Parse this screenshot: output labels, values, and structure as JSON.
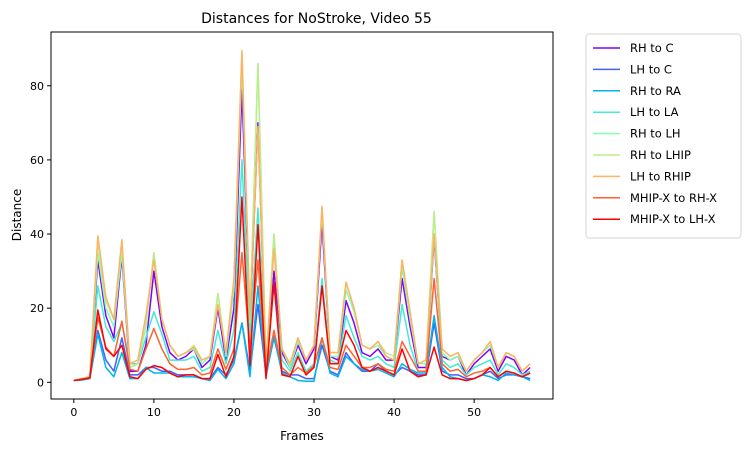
{
  "chart_data": {
    "type": "line",
    "title": "Distances for NoStroke, Video 55",
    "xlabel": "Frames",
    "ylabel": "Distance",
    "xlim": [
      -2.85,
      59.85
    ],
    "ylim": [
      -4.5,
      94.5
    ],
    "xticks": [
      0,
      10,
      20,
      30,
      40,
      50
    ],
    "yticks": [
      0,
      20,
      40,
      60,
      80
    ],
    "legend": "outside-right",
    "grid": false,
    "x_start": 0,
    "series": [
      {
        "name": "RH to C",
        "color": "#8000ff",
        "values": [
          0.5,
          0.8,
          1.2,
          33,
          18,
          12,
          34,
          3,
          3,
          10,
          30,
          15,
          8,
          6,
          7,
          9,
          4,
          6,
          20,
          6,
          20,
          79,
          16,
          70,
          4,
          30,
          8,
          4,
          10,
          5,
          9,
          43,
          7,
          6,
          22,
          16,
          8,
          7,
          9,
          6,
          6,
          28,
          15,
          4,
          4,
          39,
          7,
          6,
          7,
          2,
          5,
          7,
          9,
          3,
          7,
          6,
          2,
          4
        ]
      },
      {
        "name": "LH to C",
        "color": "#4062fa",
        "values": [
          0.5,
          0.8,
          1.0,
          14,
          6,
          3,
          12,
          2,
          2,
          4,
          4,
          3,
          3,
          2,
          2,
          2,
          1,
          1,
          4,
          2,
          6,
          16,
          3,
          21,
          2,
          12,
          3,
          2,
          2,
          1,
          1,
          10,
          3,
          2,
          8,
          5,
          3,
          3,
          5,
          3,
          2,
          4,
          3,
          2,
          2,
          16,
          3,
          2,
          2,
          1,
          1,
          2,
          3,
          1,
          2,
          2,
          1.5,
          1
        ]
      },
      {
        "name": "RH to RA",
        "color": "#00b5eb",
        "values": [
          0.5,
          0.6,
          1.0,
          13,
          4,
          1.5,
          8,
          1,
          1,
          4,
          2.5,
          2.5,
          2.5,
          1.5,
          1.5,
          1.5,
          1,
          0.5,
          3.5,
          1,
          5,
          16,
          1.5,
          26,
          1.5,
          12.5,
          2.5,
          1.5,
          0.5,
          0.3,
          0.3,
          12,
          2.5,
          1.5,
          7,
          5,
          3.5,
          3,
          3.5,
          2.5,
          1.5,
          5,
          3.5,
          2.5,
          2.5,
          18,
          4,
          1.5,
          1,
          0.5,
          1,
          2,
          1.5,
          0.5,
          2.5,
          2,
          1.5,
          0.5
        ]
      },
      {
        "name": "LH to LA",
        "color": "#40ecd4",
        "values": [
          0.5,
          0.8,
          1.2,
          26,
          15,
          11,
          16,
          5,
          5,
          12,
          19,
          13,
          6,
          6,
          6,
          7,
          3,
          4,
          14,
          5,
          14,
          60,
          12,
          47,
          4,
          26,
          6,
          3,
          8,
          3,
          5,
          28,
          6,
          5,
          18,
          12,
          7,
          6,
          7,
          5,
          4,
          21,
          10,
          3,
          3,
          40,
          6,
          4,
          5,
          2,
          4,
          5,
          6,
          2,
          5,
          4,
          2,
          3
        ]
      },
      {
        "name": "RH to LH",
        "color": "#80ffb4",
        "values": [
          0.5,
          1.0,
          1.5,
          35,
          20,
          15,
          35,
          4,
          5,
          15,
          35,
          17,
          10,
          7,
          8,
          9,
          5,
          7,
          24,
          7,
          25,
          86,
          16,
          86,
          5,
          40,
          9,
          4,
          11,
          6,
          10,
          46,
          7,
          7,
          25,
          19,
          10,
          9,
          10,
          7,
          6,
          31,
          17,
          5,
          5,
          46,
          8,
          6,
          7,
          3,
          6,
          8,
          10,
          4,
          8,
          7,
          3,
          5
        ]
      },
      {
        "name": "RH to LHIP",
        "color": "#c0eb8d",
        "values": [
          0.5,
          1.0,
          1.5,
          38,
          22,
          17,
          38,
          4,
          5,
          16,
          35,
          17,
          10,
          7,
          8,
          10,
          6,
          7,
          24,
          8,
          26,
          89,
          18,
          86,
          5,
          40,
          9,
          5,
          12,
          6,
          10,
          47,
          8,
          8,
          27,
          20,
          10,
          9,
          11,
          8,
          7,
          33,
          18,
          5,
          6,
          46,
          9,
          7,
          8,
          3,
          6,
          8,
          11,
          4,
          8,
          7,
          3,
          5
        ]
      },
      {
        "name": "LH to RHIP",
        "color": "#ffb360",
        "values": [
          0.5,
          1.0,
          1.5,
          39.5,
          23,
          17,
          38.5,
          5,
          6,
          18,
          33,
          17,
          10,
          7,
          8,
          9.5,
          6,
          7,
          21,
          8,
          28,
          89.5,
          17,
          69,
          5,
          36,
          9,
          5,
          12,
          6,
          10,
          47.5,
          8,
          8,
          27,
          20,
          10,
          9,
          11,
          7,
          6,
          33,
          19,
          5,
          6,
          40,
          9,
          7,
          8,
          3,
          6,
          8,
          11,
          4,
          8,
          7,
          3,
          5
        ]
      },
      {
        "name": "MHIP-X to RH-X",
        "color": "#ff6231",
        "values": [
          0.5,
          0.8,
          1.2,
          17.5,
          9.5,
          7,
          16.5,
          3.5,
          3,
          9,
          14.5,
          9,
          5,
          3.5,
          3.5,
          4,
          2,
          2.5,
          9,
          3.5,
          9,
          35,
          9,
          33,
          3,
          14,
          4,
          2,
          4,
          2.5,
          4.5,
          12,
          4,
          3.5,
          10,
          7,
          4,
          4,
          5,
          3.5,
          3,
          11,
          7,
          3,
          3,
          28,
          5,
          3,
          3.5,
          1.5,
          2.5,
          3,
          4,
          1.5,
          3,
          2.5,
          1.5,
          2.5
        ]
      },
      {
        "name": "MHIP-X to LH-X",
        "color": "#ff0000",
        "values": [
          0.5,
          0.8,
          1.2,
          19.5,
          9,
          7,
          10,
          1.5,
          1,
          3.5,
          4.5,
          4,
          2.5,
          1.5,
          2,
          2,
          1,
          1,
          7.5,
          1.5,
          7,
          50,
          4.5,
          42.5,
          1,
          27,
          2,
          1.5,
          7,
          2,
          4,
          26,
          5,
          5,
          14,
          10,
          4,
          3,
          4,
          3,
          2,
          9,
          3,
          1.5,
          2,
          9.5,
          2,
          1,
          1,
          0.5,
          1,
          2,
          4,
          1.5,
          3,
          2.5,
          1.5,
          2.5
        ]
      }
    ]
  }
}
